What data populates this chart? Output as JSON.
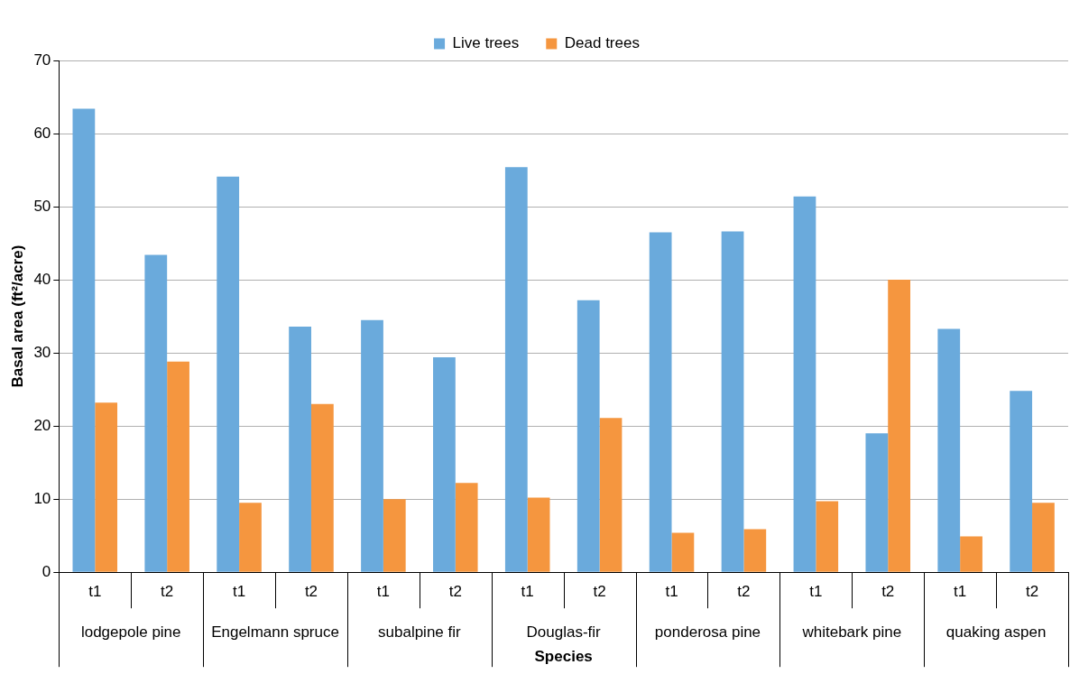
{
  "chart_data": {
    "type": "bar",
    "xlabel": "Species",
    "ylabel": "Basal area (ft²/acre)",
    "categories": [
      "t1",
      "t2",
      "t1",
      "t2",
      "t1",
      "t2",
      "t1",
      "t2",
      "t1",
      "t2",
      "t1",
      "t2",
      "t1",
      "t2"
    ],
    "annotations": [
      "lodgepole pine",
      "Engelmann spruce",
      "subalpine fir",
      "Douglas-fir",
      "ponderosa pine",
      "whitebark pine",
      "quaking aspen"
    ],
    "series": [
      {
        "name": "Live trees",
        "color": "#6aaadc",
        "values": [
          63.4,
          43.4,
          54.1,
          33.6,
          34.5,
          29.4,
          55.4,
          37.2,
          46.5,
          46.6,
          51.4,
          19.0,
          33.3,
          24.8
        ]
      },
      {
        "name": "Dead trees",
        "color": "#f5963f",
        "values": [
          23.2,
          28.8,
          9.5,
          23.0,
          10.0,
          12.2,
          10.2,
          21.1,
          5.4,
          5.9,
          9.7,
          40.0,
          4.9,
          9.5
        ]
      }
    ],
    "ylim": [
      0,
      70
    ],
    "yticks": [
      0,
      10,
      20,
      30,
      40,
      50,
      60,
      70
    ],
    "grid": "y",
    "legend": "top"
  }
}
